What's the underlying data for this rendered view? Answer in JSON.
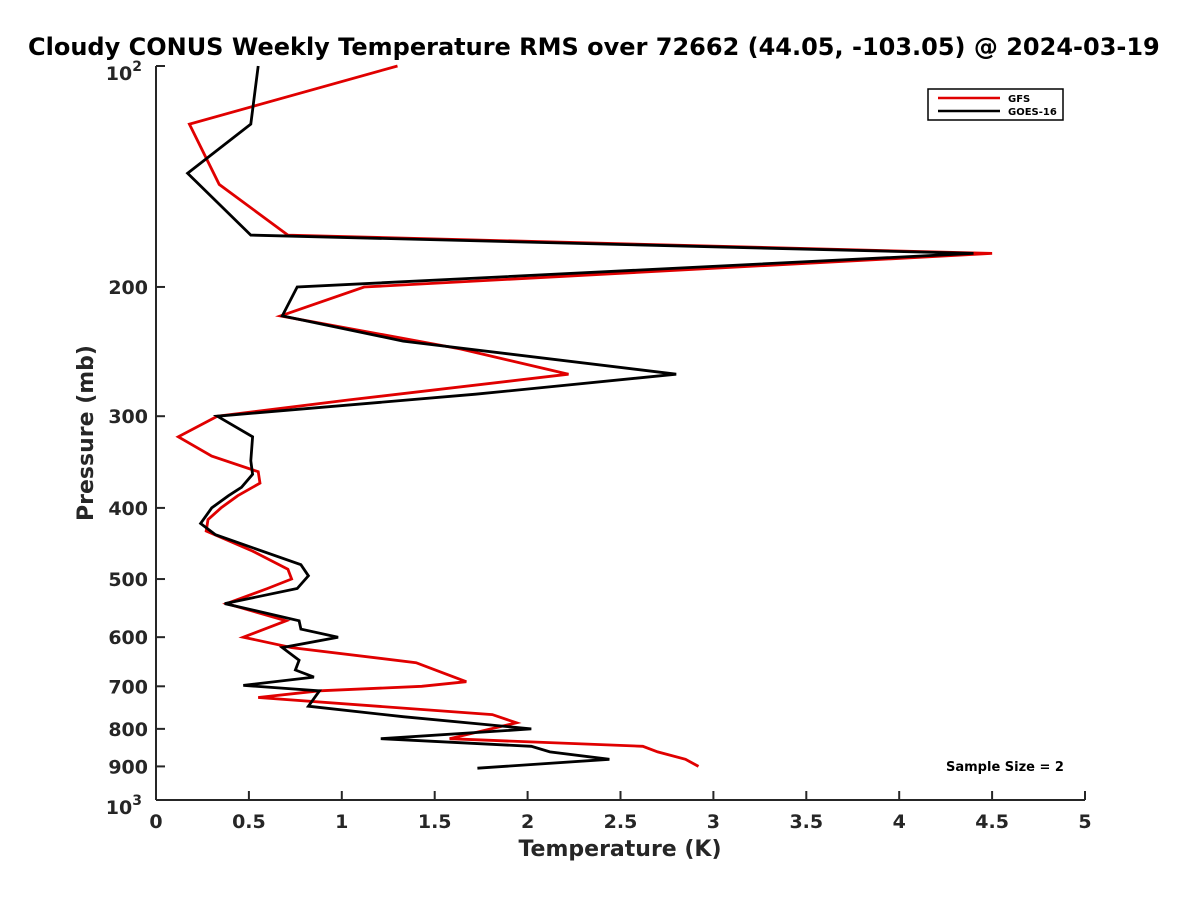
{
  "chart_data": {
    "type": "line",
    "title": "Cloudy CONUS Weekly Temperature RMS over 72662 (44.05, -103.05) @ 2024-03-19",
    "xlabel": "Temperature (K)",
    "ylabel": "Pressure (mb)",
    "xlim": [
      0,
      5
    ],
    "ylim": [
      100,
      1000
    ],
    "y_scale": "log",
    "y_reversed": true,
    "grid": false,
    "legend_position": "top-right",
    "x_ticks": [
      "0",
      "0.5",
      "1",
      "1.5",
      "2",
      "2.5",
      "3",
      "3.5",
      "4",
      "4.5",
      "5"
    ],
    "y_ticks": [
      {
        "value": 100,
        "base": "10",
        "exp": "2"
      },
      {
        "value": 200,
        "label": "200"
      },
      {
        "value": 300,
        "label": "300"
      },
      {
        "value": 400,
        "label": "400"
      },
      {
        "value": 500,
        "label": "500"
      },
      {
        "value": 600,
        "label": "600"
      },
      {
        "value": 700,
        "label": "700"
      },
      {
        "value": 800,
        "label": "800"
      },
      {
        "value": 900,
        "label": "900"
      },
      {
        "value": 1000,
        "base": "10",
        "exp": "3"
      }
    ],
    "annotation": "Sample Size = 2",
    "series": [
      {
        "name": "GFS",
        "color": "#e00000",
        "points": [
          [
            1.3,
            100
          ],
          [
            0.18,
            120
          ],
          [
            0.34,
            145
          ],
          [
            0.71,
            170
          ],
          [
            4.5,
            180
          ],
          [
            1.12,
            200
          ],
          [
            0.67,
            219
          ],
          [
            1.64,
            243
          ],
          [
            2.22,
            263
          ],
          [
            1.04,
            285
          ],
          [
            0.33,
            300
          ],
          [
            0.12,
            320
          ],
          [
            0.3,
            340
          ],
          [
            0.55,
            357
          ],
          [
            0.56,
            370
          ],
          [
            0.44,
            385
          ],
          [
            0.35,
            400
          ],
          [
            0.28,
            415
          ],
          [
            0.27,
            430
          ],
          [
            0.52,
            458
          ],
          [
            0.71,
            485
          ],
          [
            0.73,
            500
          ],
          [
            0.6,
            515
          ],
          [
            0.38,
            540
          ],
          [
            0.7,
            570
          ],
          [
            0.47,
            600
          ],
          [
            0.73,
            620
          ],
          [
            1.4,
            650
          ],
          [
            1.57,
            675
          ],
          [
            1.67,
            690
          ],
          [
            1.43,
            700
          ],
          [
            0.88,
            710
          ],
          [
            0.55,
            725
          ],
          [
            1.81,
            765
          ],
          [
            1.94,
            785
          ],
          [
            1.58,
            825
          ],
          [
            2.62,
            845
          ],
          [
            2.7,
            860
          ],
          [
            2.85,
            880
          ],
          [
            2.92,
            900
          ]
        ]
      },
      {
        "name": "GOES-16",
        "color": "#000000",
        "points": [
          [
            0.55,
            100
          ],
          [
            0.51,
            120
          ],
          [
            0.17,
            140
          ],
          [
            0.51,
            170
          ],
          [
            4.4,
            180
          ],
          [
            0.76,
            200
          ],
          [
            0.68,
            219
          ],
          [
            1.33,
            237
          ],
          [
            2.8,
            263
          ],
          [
            1.72,
            280
          ],
          [
            0.33,
            300
          ],
          [
            0.52,
            320
          ],
          [
            0.51,
            345
          ],
          [
            0.52,
            360
          ],
          [
            0.46,
            375
          ],
          [
            0.39,
            385
          ],
          [
            0.3,
            400
          ],
          [
            0.24,
            420
          ],
          [
            0.32,
            435
          ],
          [
            0.78,
            478
          ],
          [
            0.82,
            495
          ],
          [
            0.76,
            515
          ],
          [
            0.37,
            540
          ],
          [
            0.77,
            570
          ],
          [
            0.78,
            585
          ],
          [
            0.98,
            600
          ],
          [
            0.68,
            620
          ],
          [
            0.77,
            645
          ],
          [
            0.75,
            665
          ],
          [
            0.85,
            680
          ],
          [
            0.47,
            698
          ],
          [
            0.88,
            710
          ],
          [
            0.82,
            745
          ],
          [
            1.33,
            770
          ],
          [
            2.02,
            800
          ],
          [
            1.21,
            825
          ],
          [
            2.02,
            845
          ],
          [
            2.12,
            860
          ],
          [
            2.44,
            880
          ],
          [
            1.73,
            905
          ]
        ]
      }
    ]
  }
}
